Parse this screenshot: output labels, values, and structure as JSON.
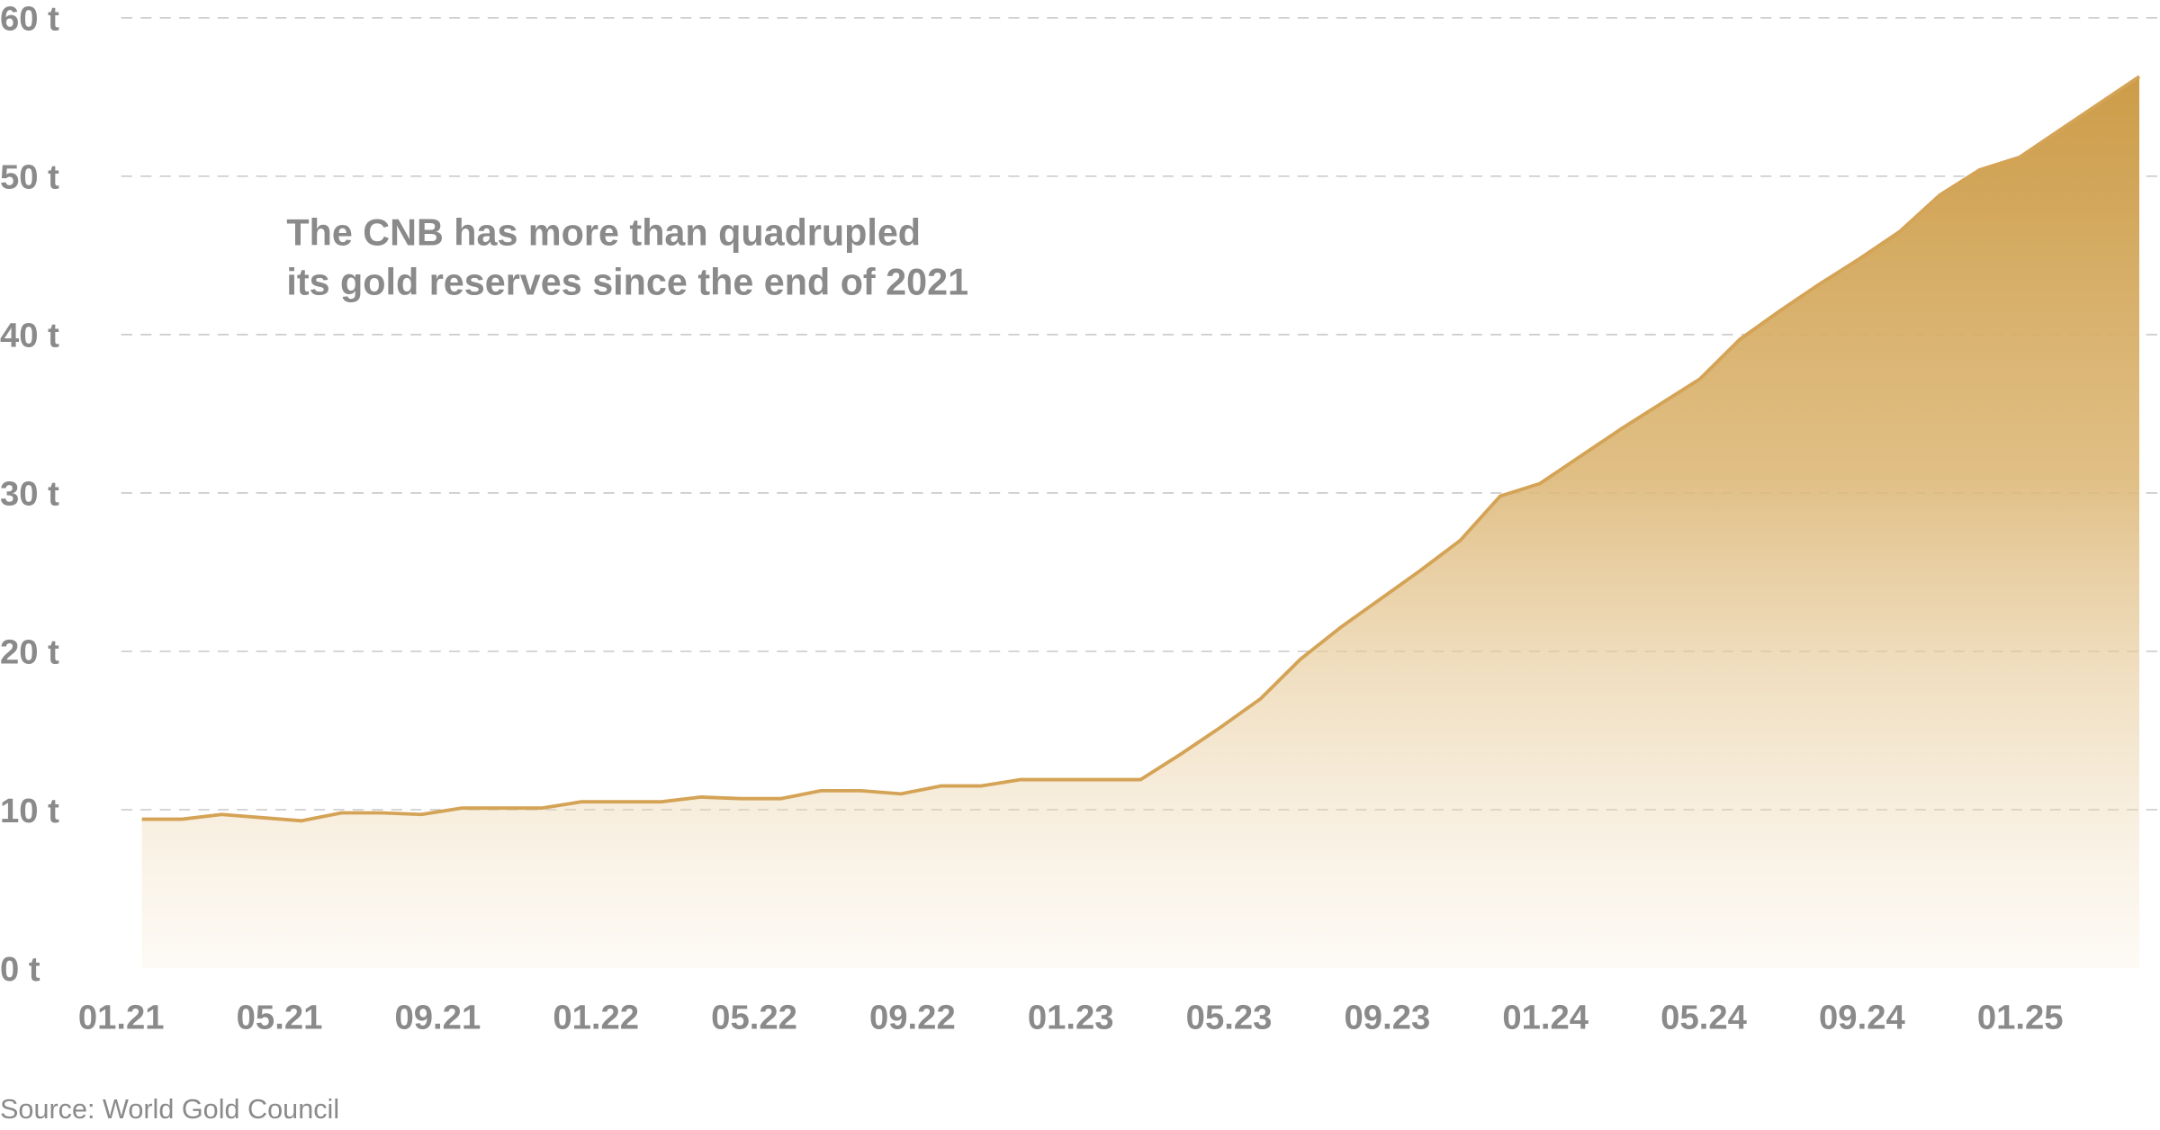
{
  "chart_data": {
    "type": "area",
    "annotation": [
      "The CNB has more than quadrupled",
      "its gold reserves since the end of 2021"
    ],
    "source": "Source: World Gold Council",
    "categories": [
      "01.21",
      null,
      null,
      null,
      "05.21",
      null,
      null,
      null,
      "09.21",
      null,
      null,
      null,
      "01.22",
      null,
      null,
      null,
      "05.22",
      null,
      null,
      null,
      "09.22",
      null,
      null,
      null,
      "01.23",
      null,
      null,
      null,
      "05.23",
      null,
      null,
      null,
      "09.23",
      null,
      null,
      null,
      "01.24",
      null,
      null,
      null,
      "05.24",
      null,
      null,
      null,
      "09.24",
      null,
      null,
      null,
      "01.25",
      null,
      null
    ],
    "values": [
      9.4,
      9.4,
      9.7,
      9.5,
      9.3,
      9.8,
      9.8,
      9.7,
      10.1,
      10.1,
      10.1,
      10.5,
      10.5,
      10.5,
      10.8,
      10.7,
      10.7,
      11.2,
      11.2,
      11.0,
      11.5,
      11.5,
      11.9,
      11.9,
      11.9,
      11.9,
      13.5,
      15.2,
      17.0,
      19.5,
      21.5,
      23.3,
      25.1,
      27.0,
      29.8,
      30.6,
      32.3,
      34.0,
      35.6,
      37.2,
      39.7,
      41.5,
      43.2,
      44.8,
      46.5,
      48.8,
      50.4,
      51.2,
      52.9,
      54.6,
      56.3
    ],
    "color": "#d4a356",
    "ylim": [
      0,
      60
    ],
    "yticks": [
      {
        "value": 0,
        "label": "0 t"
      },
      {
        "value": 10,
        "label": "10 t"
      },
      {
        "value": 20,
        "label": "20 t"
      },
      {
        "value": 30,
        "label": "30 t"
      },
      {
        "value": 40,
        "label": "40 t"
      },
      {
        "value": 50,
        "label": "50 t"
      },
      {
        "value": 60,
        "label": "60 t"
      }
    ],
    "grid": true
  }
}
